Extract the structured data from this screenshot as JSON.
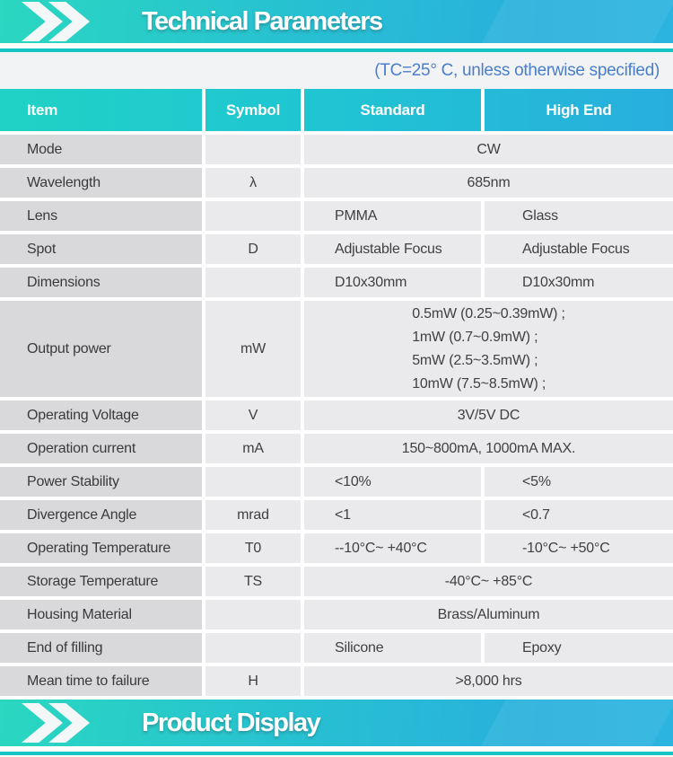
{
  "top_banner": {
    "title": "Technical Parameters"
  },
  "subtitle_note": "(TC=25° C, unless otherwise specified)",
  "table": {
    "headers": [
      "Item",
      "Symbol",
      "Standard",
      "High End"
    ],
    "rows": [
      {
        "item": "Mode",
        "symbol": "",
        "merged": "CW"
      },
      {
        "item": "Wavelength",
        "symbol": "λ",
        "merged": "685nm"
      },
      {
        "item": "Lens",
        "symbol": "",
        "standard": "PMMA",
        "high_end": "Glass"
      },
      {
        "item": "Spot",
        "symbol": "D",
        "standard": "Adjustable Focus",
        "high_end": "Adjustable Focus"
      },
      {
        "item": "Dimensions",
        "symbol": "",
        "standard": "D10x30mm",
        "high_end": "D10x30mm"
      },
      {
        "item": "Output power",
        "symbol": "mW",
        "merged_lines": [
          "0.5mW (0.25~0.39mW) ;",
          "1mW (0.7~0.9mW) ;",
          "5mW (2.5~3.5mW) ;",
          "10mW (7.5~8.5mW) ;"
        ]
      },
      {
        "item": "Operating Voltage",
        "symbol": "V",
        "merged": "3V/5V DC"
      },
      {
        "item": "Operation current",
        "symbol": "mA",
        "merged": "150~800mA, 1000mA MAX."
      },
      {
        "item": "Power Stability",
        "symbol": "",
        "standard": "<10%",
        "high_end": "<5%"
      },
      {
        "item": "Divergence Angle",
        "symbol": "mrad",
        "standard": "<1",
        "high_end": "<0.7"
      },
      {
        "item": "Operating Temperature",
        "symbol": "T0",
        "standard": "--10°C~ +40°C",
        "high_end": "-10°C~ +50°C"
      },
      {
        "item": "Storage Temperature",
        "symbol": "TS",
        "merged": "-40°C~ +85°C"
      },
      {
        "item": "Housing Material",
        "symbol": "",
        "merged": "Brass/Aluminum"
      },
      {
        "item": "End of filling",
        "symbol": "",
        "standard": "Silicone",
        "high_end": "Epoxy"
      },
      {
        "item": "Mean time to failure",
        "symbol": "H",
        "merged": ">8,000 hrs"
      }
    ]
  },
  "bottom_banner": {
    "title": "Product Display"
  },
  "colors": {
    "banner_gradient_start": "#2ad7c1",
    "banner_gradient_end": "#2bb4e0",
    "accent_teal_line": "#16c4c4",
    "subtitle_text": "#4a7ecb",
    "header_text": "#ffffff",
    "item_cell_bg": "#d9d9db",
    "value_cell_bg": "#eaeaec",
    "cell_text": "#404043"
  }
}
